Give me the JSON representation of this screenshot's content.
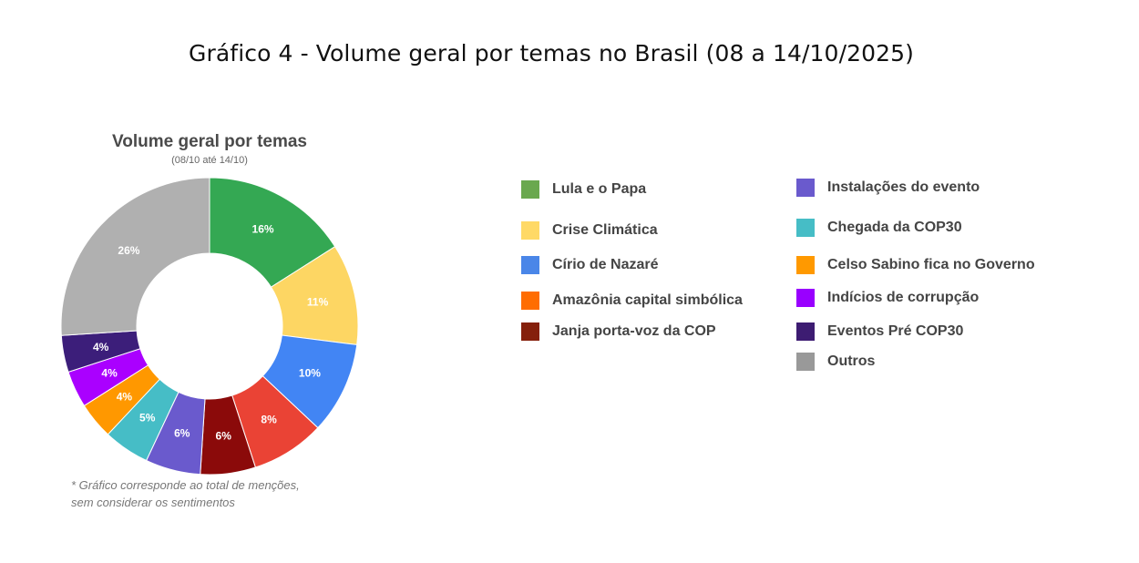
{
  "page_title": "Gráfico 4 - Volume geral por temas no Brasil (08 a 14/10/2025)",
  "footnote": {
    "line1": "* Gráfico corresponde ao total de menções,",
    "line2": "sem considerar os sentimentos"
  },
  "chart_data": {
    "type": "pie",
    "title": "Volume geral por temas",
    "subtitle": "(08/10 até 14/10)",
    "donut": true,
    "legend_position": "right",
    "slices": [
      {
        "label": "Lula e o Papa",
        "value": 16,
        "display": "16%",
        "color": "#34A853"
      },
      {
        "label": "Crise Climática",
        "value": 11,
        "display": "11%",
        "color": "#FDD663"
      },
      {
        "label": "Círio de Nazaré",
        "value": 10,
        "display": "10%",
        "color": "#4285F4"
      },
      {
        "label": "Amazônia capital simbólica",
        "value": 8,
        "display": "8%",
        "color": "#EA4335"
      },
      {
        "label": "Janja porta-voz da COP",
        "value": 6,
        "display": "6%",
        "color": "#8B0A0A"
      },
      {
        "label": "Instalações do evento",
        "value": 6,
        "display": "6%",
        "color": "#6A5ACD"
      },
      {
        "label": "Chegada da COP30",
        "value": 5,
        "display": "5%",
        "color": "#46BDC6"
      },
      {
        "label": "Celso Sabino fica no Governo",
        "value": 4,
        "display": "4%",
        "color": "#FF9800"
      },
      {
        "label": "Indícios de corrupção",
        "value": 4,
        "display": "4%",
        "color": "#AA00FF"
      },
      {
        "label": "Eventos Pré COP30",
        "value": 4,
        "display": "4%",
        "color": "#3C1E7A"
      },
      {
        "label": "Outros",
        "value": 26,
        "display": "26%",
        "color": "#B0B0B0"
      }
    ],
    "legend_entries": [
      {
        "label": "Lula e o Papa",
        "color": "#6AA84F"
      },
      {
        "label": "Crise Climática",
        "color": "#FFD966"
      },
      {
        "label": "Círio de Nazaré",
        "color": "#4A86E8"
      },
      {
        "label": "Amazônia capital simbólica",
        "color": "#FF6D01"
      },
      {
        "label": "Janja porta-voz da COP",
        "color": "#85200C"
      },
      {
        "label": "Instalações do evento",
        "color": "#6A5ACD"
      },
      {
        "label": "Chegada da COP30",
        "color": "#46BDC6"
      },
      {
        "label": "Celso Sabino fica no Governo",
        "color": "#FF9900"
      },
      {
        "label": "Indícios de corrupção",
        "color": "#9900FF"
      },
      {
        "label": "Eventos Pré COP30",
        "color": "#3D1C72"
      },
      {
        "label": "Outros",
        "color": "#999999"
      }
    ]
  }
}
